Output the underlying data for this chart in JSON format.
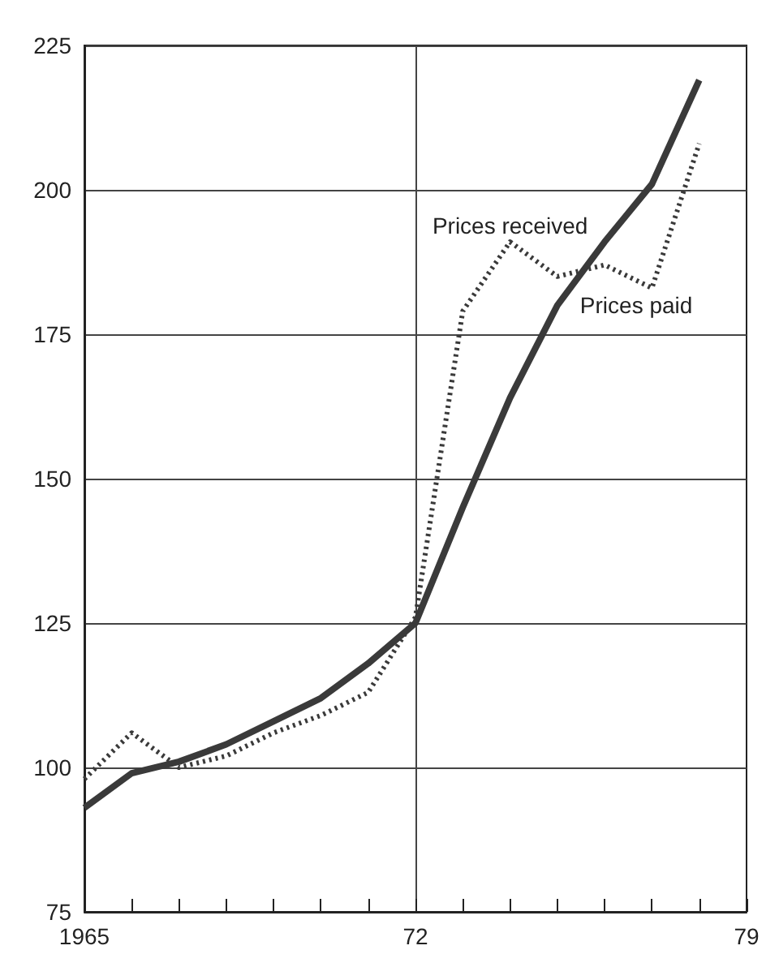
{
  "chart_data": {
    "type": "line",
    "x": [
      1965,
      1966,
      1967,
      1968,
      1969,
      1970,
      1971,
      1972,
      1973,
      1974,
      1975,
      1976,
      1977,
      1978
    ],
    "series": [
      {
        "name": "Prices paid",
        "color": "#3a3a3a",
        "line_style": "solid",
        "values": [
          93,
          99,
          101,
          104,
          108,
          112,
          118,
          125,
          145,
          164,
          180,
          191,
          201,
          219
        ]
      },
      {
        "name": "Prices received",
        "color": "#3a3a3a",
        "line_style": "dotted",
        "values": [
          98,
          106,
          100,
          102,
          106,
          109,
          113,
          126,
          179,
          191,
          185,
          187,
          183,
          208
        ]
      }
    ],
    "xlim": [
      1965,
      1979
    ],
    "xticks": [
      {
        "value": 1965,
        "label": "1965"
      },
      {
        "value": 1966,
        "label": null
      },
      {
        "value": 1967,
        "label": null
      },
      {
        "value": 1968,
        "label": null
      },
      {
        "value": 1969,
        "label": null
      },
      {
        "value": 1970,
        "label": null
      },
      {
        "value": 1971,
        "label": null
      },
      {
        "value": 1972,
        "label": "72"
      },
      {
        "value": 1973,
        "label": null
      },
      {
        "value": 1974,
        "label": null
      },
      {
        "value": 1975,
        "label": null
      },
      {
        "value": 1976,
        "label": null
      },
      {
        "value": 1977,
        "label": null
      },
      {
        "value": 1978,
        "label": null
      },
      {
        "value": 1979,
        "label": "79"
      }
    ],
    "ylim": [
      75,
      225
    ],
    "yticks": [
      75,
      100,
      125,
      150,
      175,
      200,
      225
    ],
    "grid": true,
    "legend": false,
    "marker": "none"
  }
}
